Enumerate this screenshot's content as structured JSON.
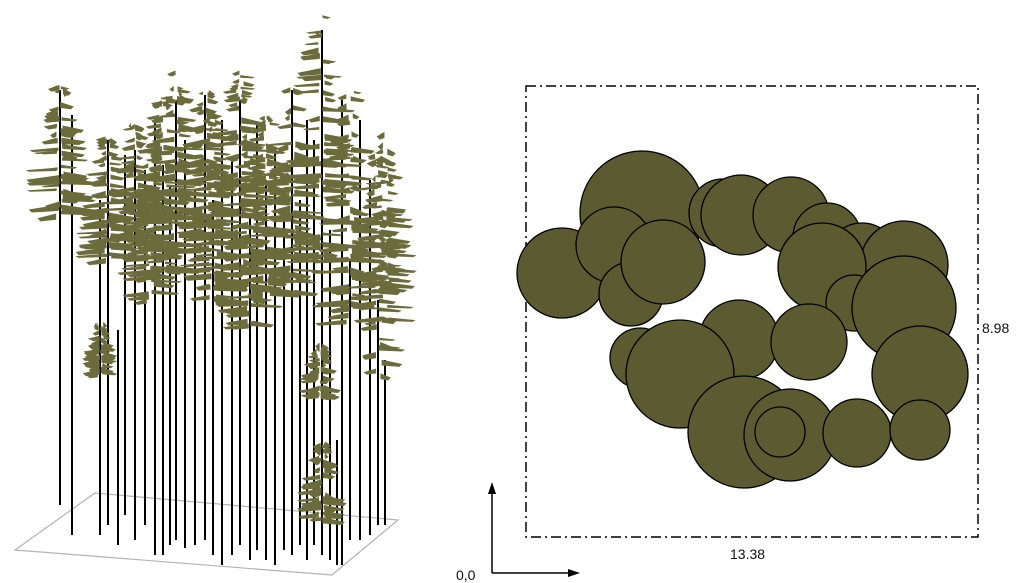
{
  "palette": {
    "crown": "#5b5a30",
    "foliage": "#6b6b3c",
    "stem": "#000000",
    "plot_outline": "#b4b4b4"
  },
  "crown_map": {
    "width_label": "13.38",
    "height_label": "8.98",
    "origin_label": "0,0"
  }
}
